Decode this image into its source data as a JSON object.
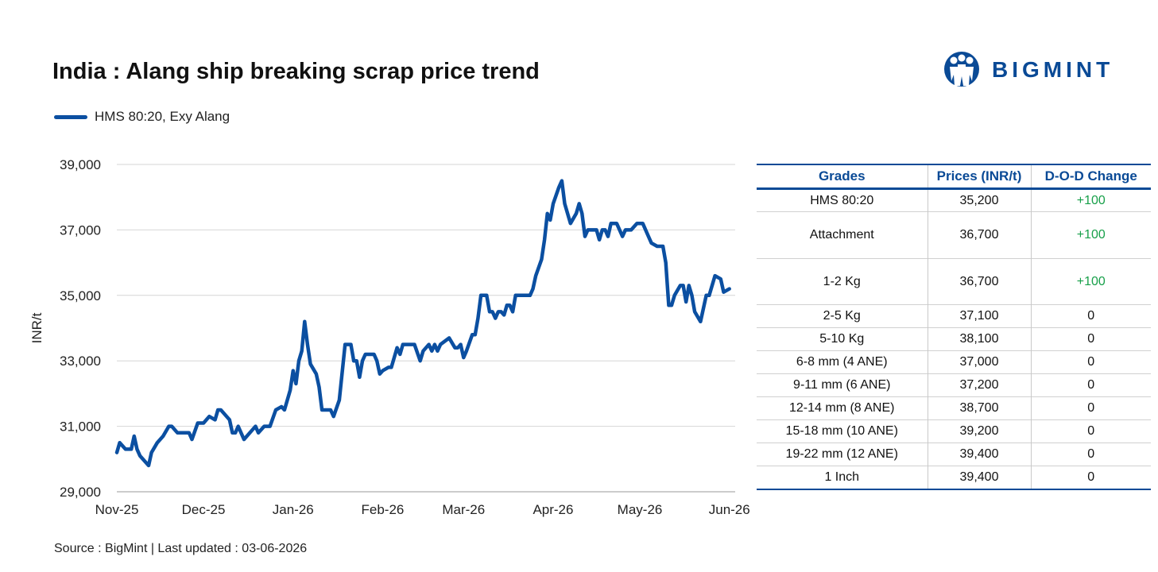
{
  "title": "India : Alang ship breaking scrap price trend",
  "brand": {
    "name": "BIGMINT",
    "color": "#0a4a96"
  },
  "source": "Source : BigMint | Last updated : 03-06-2026",
  "chart_data": {
    "type": "line",
    "ylabel": "INR/t",
    "ylim": [
      29000,
      39000
    ],
    "yticks": [
      "29,000",
      "31,000",
      "33,000",
      "35,000",
      "37,000",
      "39,000"
    ],
    "xticks": [
      "Nov-25",
      "Dec-25",
      "Jan-26",
      "Feb-26",
      "Mar-26",
      "Apr-26",
      "May-26",
      "Jun-26"
    ],
    "xlim": [
      "2025-11-01",
      "2026-06-03"
    ],
    "grid": "horizontal",
    "legend": "top-left",
    "series": [
      {
        "name": "HMS 80:20, Exy Alang",
        "color": "#0b4fa1",
        "points": [
          [
            "2025-11-01",
            30200
          ],
          [
            "2025-11-02",
            30500
          ],
          [
            "2025-11-04",
            30300
          ],
          [
            "2025-11-06",
            30300
          ],
          [
            "2025-11-07",
            30700
          ],
          [
            "2025-11-08",
            30300
          ],
          [
            "2025-11-09",
            30100
          ],
          [
            "2025-11-12",
            29800
          ],
          [
            "2025-11-13",
            30200
          ],
          [
            "2025-11-15",
            30500
          ],
          [
            "2025-11-17",
            30700
          ],
          [
            "2025-11-19",
            31000
          ],
          [
            "2025-11-20",
            31000
          ],
          [
            "2025-11-22",
            30800
          ],
          [
            "2025-11-26",
            30800
          ],
          [
            "2025-11-27",
            30600
          ],
          [
            "2025-11-29",
            31100
          ],
          [
            "2025-12-01",
            31100
          ],
          [
            "2025-12-03",
            31300
          ],
          [
            "2025-12-05",
            31200
          ],
          [
            "2025-12-06",
            31500
          ],
          [
            "2025-12-07",
            31500
          ],
          [
            "2025-12-09",
            31300
          ],
          [
            "2025-12-10",
            31200
          ],
          [
            "2025-12-11",
            30800
          ],
          [
            "2025-12-12",
            30800
          ],
          [
            "2025-12-13",
            31000
          ],
          [
            "2025-12-15",
            30600
          ],
          [
            "2025-12-18",
            30900
          ],
          [
            "2025-12-19",
            31000
          ],
          [
            "2025-12-20",
            30800
          ],
          [
            "2025-12-22",
            31000
          ],
          [
            "2025-12-24",
            31000
          ],
          [
            "2025-12-26",
            31500
          ],
          [
            "2025-12-28",
            31600
          ],
          [
            "2025-12-29",
            31500
          ],
          [
            "2025-12-31",
            32100
          ],
          [
            "2026-01-01",
            32700
          ],
          [
            "2026-01-02",
            32300
          ],
          [
            "2026-01-03",
            33000
          ],
          [
            "2026-01-04",
            33300
          ],
          [
            "2026-01-05",
            34200
          ],
          [
            "2026-01-06",
            33500
          ],
          [
            "2026-01-07",
            32900
          ],
          [
            "2026-01-09",
            32600
          ],
          [
            "2026-01-10",
            32200
          ],
          [
            "2026-01-11",
            31500
          ],
          [
            "2026-01-14",
            31500
          ],
          [
            "2026-01-15",
            31300
          ],
          [
            "2026-01-17",
            31800
          ],
          [
            "2026-01-19",
            33500
          ],
          [
            "2026-01-21",
            33500
          ],
          [
            "2026-01-22",
            33000
          ],
          [
            "2026-01-23",
            33000
          ],
          [
            "2026-01-24",
            32500
          ],
          [
            "2026-01-25",
            33000
          ],
          [
            "2026-01-26",
            33200
          ],
          [
            "2026-01-29",
            33200
          ],
          [
            "2026-01-30",
            33000
          ],
          [
            "2026-01-31",
            32600
          ],
          [
            "2026-02-01",
            32700
          ],
          [
            "2026-02-03",
            32800
          ],
          [
            "2026-02-04",
            32800
          ],
          [
            "2026-02-06",
            33400
          ],
          [
            "2026-02-07",
            33200
          ],
          [
            "2026-02-08",
            33500
          ],
          [
            "2026-02-12",
            33500
          ],
          [
            "2026-02-14",
            33000
          ],
          [
            "2026-02-15",
            33300
          ],
          [
            "2026-02-17",
            33500
          ],
          [
            "2026-02-18",
            33300
          ],
          [
            "2026-02-19",
            33500
          ],
          [
            "2026-02-20",
            33300
          ],
          [
            "2026-02-21",
            33500
          ],
          [
            "2026-02-24",
            33700
          ],
          [
            "2026-02-26",
            33400
          ],
          [
            "2026-02-27",
            33400
          ],
          [
            "2026-02-28",
            33500
          ],
          [
            "2026-03-01",
            33100
          ],
          [
            "2026-03-02",
            33300
          ],
          [
            "2026-03-04",
            33800
          ],
          [
            "2026-03-05",
            33800
          ],
          [
            "2026-03-06",
            34300
          ],
          [
            "2026-03-07",
            35000
          ],
          [
            "2026-03-09",
            35000
          ],
          [
            "2026-03-10",
            34500
          ],
          [
            "2026-03-11",
            34500
          ],
          [
            "2026-03-12",
            34300
          ],
          [
            "2026-03-13",
            34500
          ],
          [
            "2026-03-14",
            34500
          ],
          [
            "2026-03-15",
            34400
          ],
          [
            "2026-03-16",
            34700
          ],
          [
            "2026-03-17",
            34700
          ],
          [
            "2026-03-18",
            34500
          ],
          [
            "2026-03-19",
            35000
          ],
          [
            "2026-03-24",
            35000
          ],
          [
            "2026-03-25",
            35200
          ],
          [
            "2026-03-26",
            35600
          ],
          [
            "2026-03-28",
            36100
          ],
          [
            "2026-03-29",
            36700
          ],
          [
            "2026-03-30",
            37500
          ],
          [
            "2026-03-31",
            37300
          ],
          [
            "2026-04-01",
            37800
          ],
          [
            "2026-04-03",
            38300
          ],
          [
            "2026-04-04",
            38500
          ],
          [
            "2026-04-05",
            37800
          ],
          [
            "2026-04-07",
            37200
          ],
          [
            "2026-04-09",
            37500
          ],
          [
            "2026-04-10",
            37800
          ],
          [
            "2026-04-11",
            37500
          ],
          [
            "2026-04-12",
            36800
          ],
          [
            "2026-04-13",
            37000
          ],
          [
            "2026-04-16",
            37000
          ],
          [
            "2026-04-17",
            36700
          ],
          [
            "2026-04-18",
            37000
          ],
          [
            "2026-04-19",
            37000
          ],
          [
            "2026-04-20",
            36800
          ],
          [
            "2026-04-21",
            37200
          ],
          [
            "2026-04-23",
            37200
          ],
          [
            "2026-04-25",
            36800
          ],
          [
            "2026-04-26",
            37000
          ],
          [
            "2026-04-28",
            37000
          ],
          [
            "2026-04-30",
            37200
          ],
          [
            "2026-05-02",
            37200
          ],
          [
            "2026-05-04",
            36800
          ],
          [
            "2026-05-05",
            36600
          ],
          [
            "2026-05-07",
            36500
          ],
          [
            "2026-05-09",
            36500
          ],
          [
            "2026-05-10",
            36000
          ],
          [
            "2026-05-11",
            34700
          ],
          [
            "2026-05-12",
            34700
          ],
          [
            "2026-05-13",
            35000
          ],
          [
            "2026-05-15",
            35300
          ],
          [
            "2026-05-16",
            35300
          ],
          [
            "2026-05-17",
            34800
          ],
          [
            "2026-05-18",
            35300
          ],
          [
            "2026-05-19",
            35000
          ],
          [
            "2026-05-20",
            34500
          ],
          [
            "2026-05-22",
            34200
          ],
          [
            "2026-05-24",
            35000
          ],
          [
            "2026-05-25",
            35000
          ],
          [
            "2026-05-27",
            35600
          ],
          [
            "2026-05-29",
            35500
          ],
          [
            "2026-05-30",
            35100
          ],
          [
            "2026-06-01",
            35200
          ]
        ]
      }
    ]
  },
  "table": {
    "headers": [
      "Grades",
      "Prices (INR/t)",
      "D-O-D Change"
    ],
    "rows": [
      [
        "HMS 80:20",
        "35,200",
        "+100"
      ],
      [
        "Attachment",
        "36,700",
        "+100"
      ],
      [
        "1-2 Kg",
        "36,700",
        "+100"
      ],
      [
        "2-5 Kg",
        "37,100",
        "0"
      ],
      [
        "5-10 Kg",
        "38,100",
        "0"
      ],
      [
        "6-8 mm (4 ANE)",
        "37,000",
        "0"
      ],
      [
        "9-11 mm (6 ANE)",
        "37,200",
        "0"
      ],
      [
        "12-14 mm (8 ANE)",
        "38,700",
        "0"
      ],
      [
        "15-18 mm (10 ANE)",
        "39,200",
        "0"
      ],
      [
        "19-22 mm (12 ANE)",
        "39,400",
        "0"
      ],
      [
        "1 Inch",
        "39,400",
        "0"
      ]
    ]
  }
}
